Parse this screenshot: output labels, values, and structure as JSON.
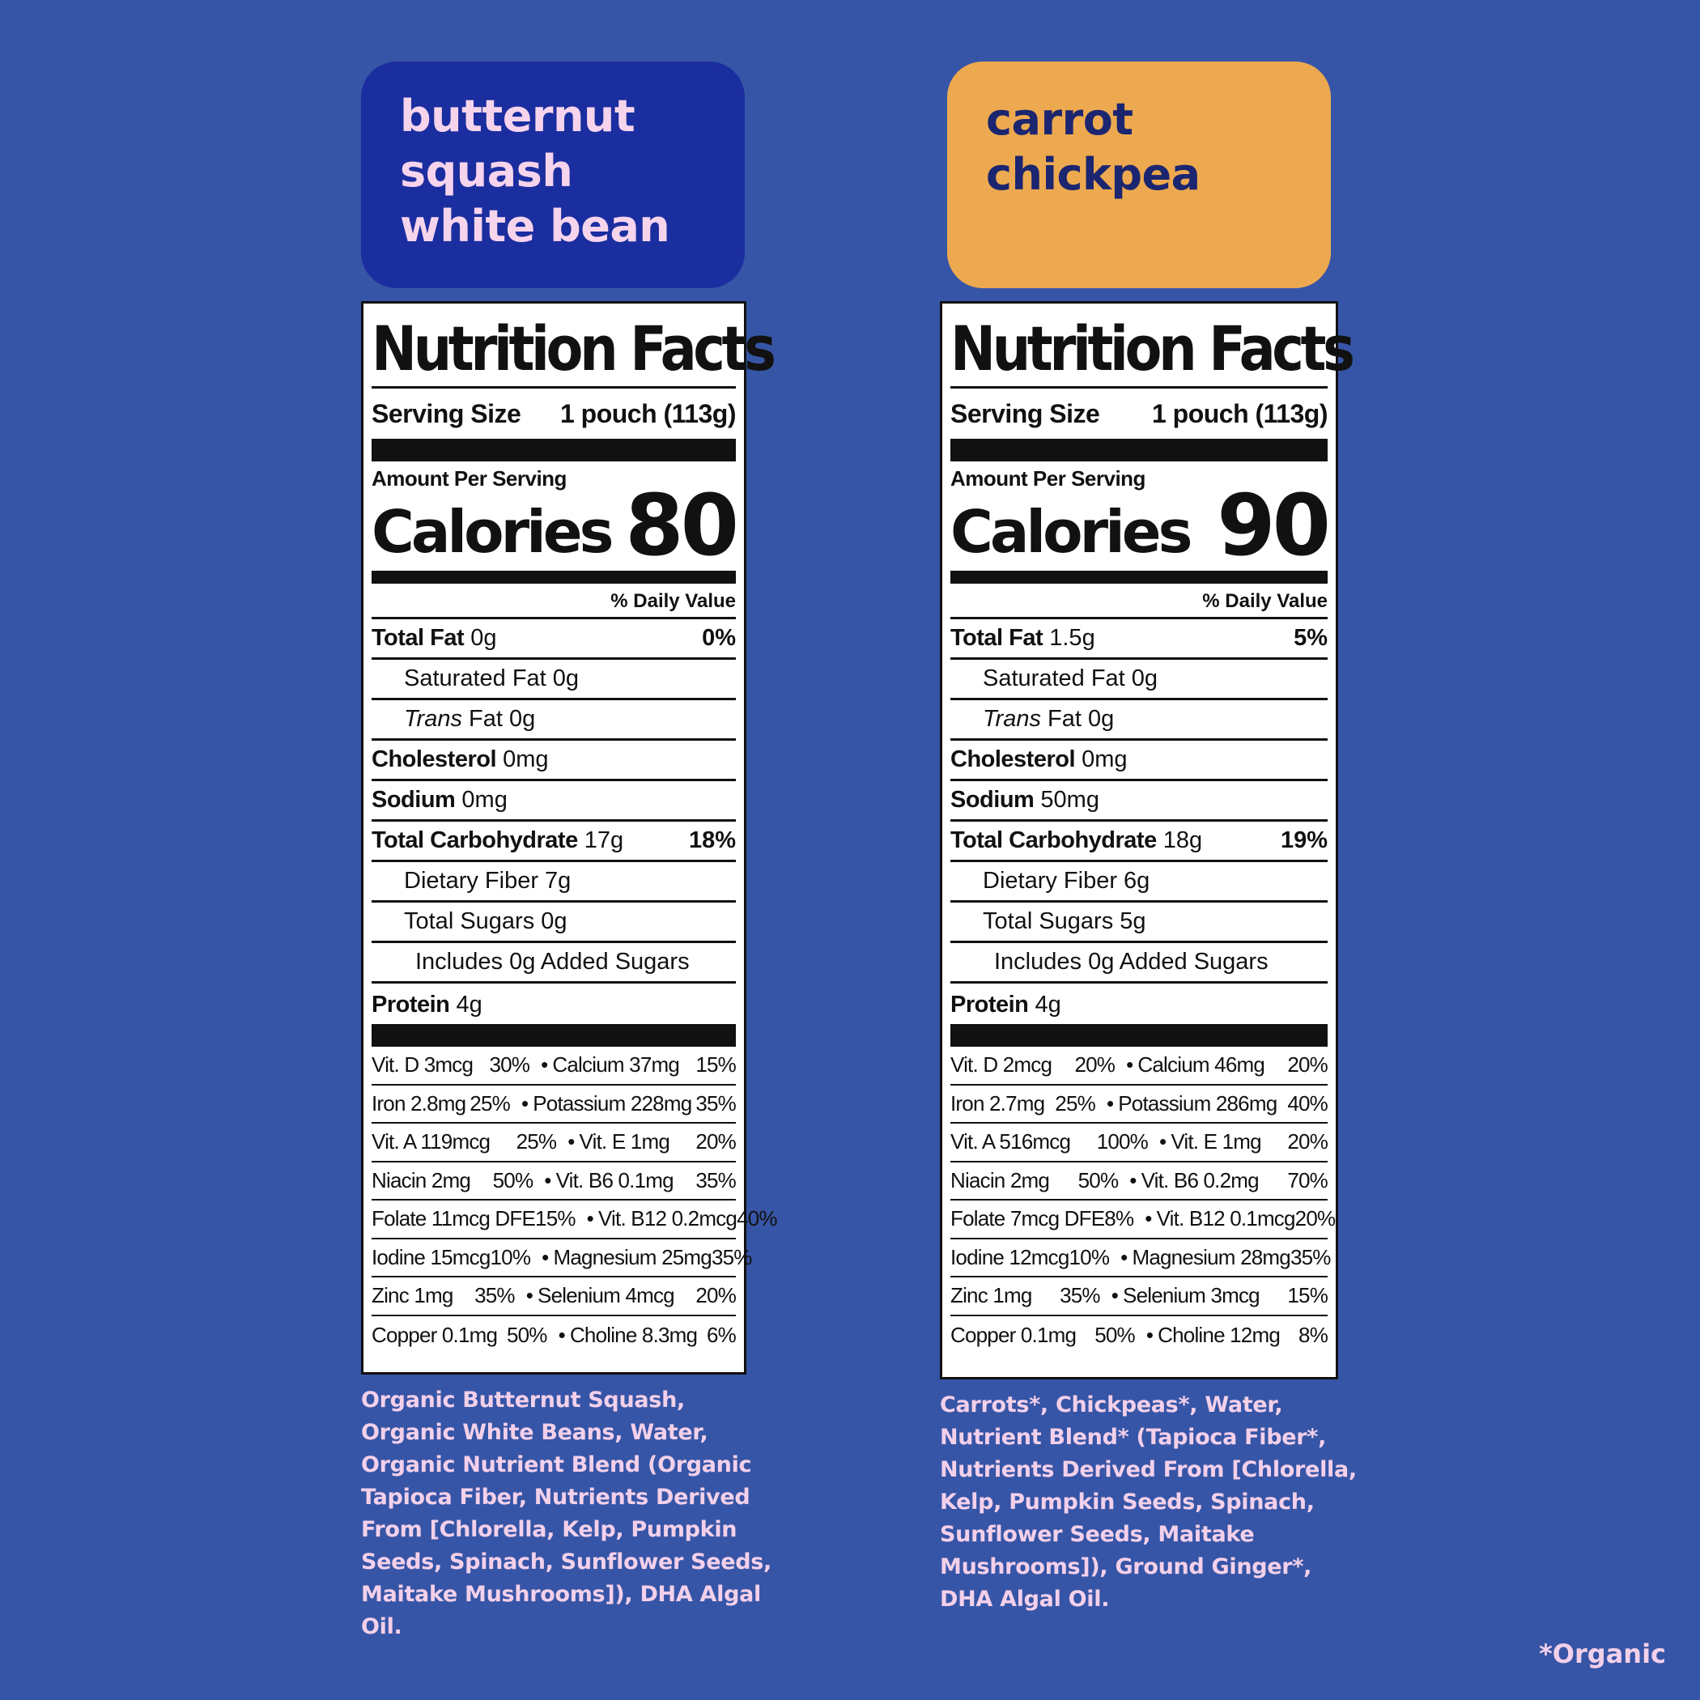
{
  "products": [
    {
      "title_lines": [
        "butternut",
        "squash",
        "white bean"
      ],
      "title_bg": "#1b2ea0",
      "title_color": "#f6d4ec",
      "nutrition": {
        "heading": "Nutrition Facts",
        "serving_label": "Serving Size",
        "serving_value": "1 pouch (113g)",
        "amount_per_serving": "Amount Per Serving",
        "calories_label": "Calories",
        "calories_value": "80",
        "dv_header": "% Daily Value",
        "total_fat": {
          "label": "Total Fat",
          "value": "0g",
          "pct": "0%"
        },
        "saturated_fat": "Saturated Fat 0g",
        "trans_fat_italic": "Trans",
        "trans_fat_rest": " Fat 0g",
        "cholesterol": {
          "label": "Cholesterol",
          "value": "0mg"
        },
        "sodium": {
          "label": "Sodium",
          "value": "0mg"
        },
        "total_carb": {
          "label": "Total Carbohydrate",
          "value": "17g",
          "pct": "18%"
        },
        "dietary_fiber": "Dietary Fiber 7g",
        "total_sugars": "Total Sugars 0g",
        "added_sugars": "Includes 0g Added Sugars",
        "protein": {
          "label": "Protein",
          "value": "4g"
        },
        "vitamins": [
          {
            "a": "Vit. D 3mcg",
            "ap": "30%",
            "b": "Calcium 37mg",
            "bp": "15%"
          },
          {
            "a": "Iron 2.8mg",
            "ap": "25%",
            "b": "Potassium 228mg",
            "bp": "35%"
          },
          {
            "a": "Vit. A 119mcg",
            "ap": "25%",
            "b": "Vit. E 1mg",
            "bp": "20%"
          },
          {
            "a": "Niacin 2mg",
            "ap": "50%",
            "b": "Vit. B6 0.1mg",
            "bp": "35%"
          },
          {
            "a": "Folate 11mcg DFE",
            "ap": "15%",
            "b": "Vit. B12 0.2mcg",
            "bp": "40%"
          },
          {
            "a": "Iodine 15mcg",
            "ap": "10%",
            "b": "Magnesium 25mg",
            "bp": "35%"
          },
          {
            "a": "Zinc 1mg",
            "ap": "35%",
            "b": "Selenium 4mcg",
            "bp": "20%"
          },
          {
            "a": "Copper 0.1mg",
            "ap": "50%",
            "b": "Choline 8.3mg",
            "bp": "6%"
          }
        ]
      },
      "ingredients_lines": [
        "Organic Butternut Squash,",
        "Organic White Beans, Water,",
        "Organic Nutrient Blend (Organic",
        "Tapioca Fiber, Nutrients Derived",
        "From [Chlorella, Kelp, Pumpkin",
        "Seeds, Spinach, Sunflower Seeds,",
        "Maitake Mushrooms]), DHA Algal",
        "Oil."
      ]
    },
    {
      "title_lines": [
        "carrot",
        "chickpea"
      ],
      "title_bg": "#eda94f",
      "title_color": "#1b2570",
      "nutrition": {
        "heading": "Nutrition Facts",
        "serving_label": "Serving Size",
        "serving_value": "1 pouch (113g)",
        "amount_per_serving": "Amount Per Serving",
        "calories_label": "Calories",
        "calories_value": "90",
        "dv_header": "% Daily Value",
        "total_fat": {
          "label": "Total Fat",
          "value": "1.5g",
          "pct": "5%"
        },
        "saturated_fat": "Saturated Fat 0g",
        "trans_fat_italic": "Trans",
        "trans_fat_rest": " Fat 0g",
        "cholesterol": {
          "label": "Cholesterol",
          "value": "0mg"
        },
        "sodium": {
          "label": "Sodium",
          "value": "50mg"
        },
        "total_carb": {
          "label": "Total Carbohydrate",
          "value": "18g",
          "pct": "19%"
        },
        "dietary_fiber": "Dietary Fiber 6g",
        "total_sugars": "Total Sugars 5g",
        "added_sugars": "Includes 0g Added Sugars",
        "protein": {
          "label": "Protein",
          "value": "4g"
        },
        "vitamins": [
          {
            "a": "Vit. D 2mcg",
            "ap": "20%",
            "b": "Calcium 46mg",
            "bp": "20%"
          },
          {
            "a": "Iron 2.7mg",
            "ap": "25%",
            "b": "Potassium 286mg",
            "bp": "40%"
          },
          {
            "a": "Vit. A 516mcg",
            "ap": "100%",
            "b": "Vit. E 1mg",
            "bp": "20%"
          },
          {
            "a": "Niacin 2mg",
            "ap": "50%",
            "b": "Vit. B6 0.2mg",
            "bp": "70%"
          },
          {
            "a": "Folate 7mcg DFE",
            "ap": "8%",
            "b": "Vit. B12 0.1mcg",
            "bp": "20%"
          },
          {
            "a": "Iodine 12mcg",
            "ap": "10%",
            "b": "Magnesium 28mg",
            "bp": "35%"
          },
          {
            "a": "Zinc 1mg",
            "ap": "35%",
            "b": "Selenium 3mcg",
            "bp": "15%"
          },
          {
            "a": "Copper 0.1mg",
            "ap": "50%",
            "b": "Choline 12mg",
            "bp": "8%"
          }
        ]
      },
      "ingredients_lines": [
        "Carrots*, Chickpeas*, Water,",
        "Nutrient Blend* (Tapioca Fiber*,",
        "Nutrients Derived From [Chlorella,",
        "Kelp, Pumpkin Seeds, Spinach,",
        "Sunflower Seeds, Maitake",
        "Mushrooms]), Ground Ginger*,",
        "DHA Algal Oil."
      ]
    }
  ],
  "footnote": "*Organic",
  "background_color": "#3755a6"
}
